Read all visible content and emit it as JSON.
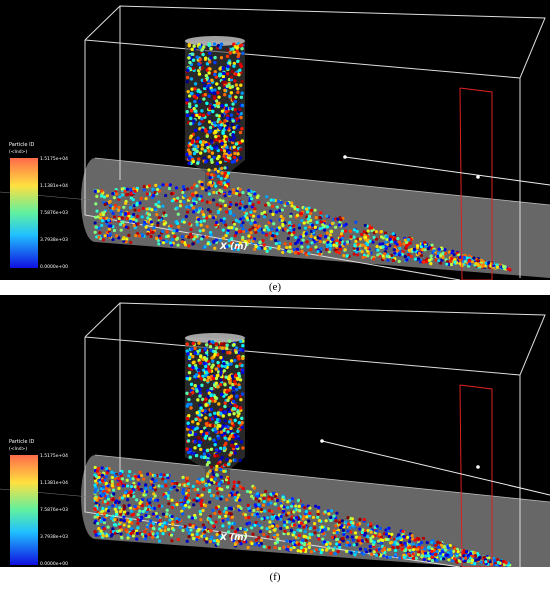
{
  "panels": [
    {
      "caption": "(e)",
      "legend": {
        "title": "Particle ID",
        "unit": "(<Ind>)",
        "ticks": [
          "1.5175e+04",
          "1.1381e+04",
          "7.5876e+03",
          "3.7938e+03",
          "0.0000e+00"
        ]
      },
      "axis_label": "X (m)"
    },
    {
      "caption": "(f)",
      "legend": {
        "title": "Particle ID",
        "unit": "(<Ind>)",
        "ticks": [
          "1.5175e+04",
          "1.1381e+04",
          "7.5876e+03",
          "3.7938e+03",
          "0.0000e+00"
        ]
      },
      "axis_label": "X (m)"
    }
  ]
}
